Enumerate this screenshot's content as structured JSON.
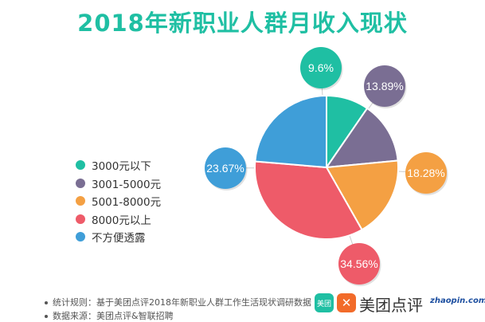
{
  "chart_data": {
    "type": "pie",
    "title": "2018年新职业人群月收入现状",
    "categories": [
      "3000元以下",
      "3001-5000元",
      "5001-8000元",
      "8000元以上",
      "不方便透露"
    ],
    "values": [
      9.6,
      13.89,
      18.28,
      34.56,
      23.67
    ],
    "labels": [
      "9.6%",
      "13.89%",
      "18.28%",
      "34.56%",
      "23.67%"
    ],
    "colors": [
      "#1fbfa3",
      "#7a6e93",
      "#f4a043",
      "#ee5b69",
      "#3f9ed8"
    ],
    "legend_position": "left"
  },
  "footer": {
    "note1": "统计规则：基于美团点评2018年新职业人群工作生活现状调研数据",
    "note2": "数据来源：美团点评&智联招聘"
  },
  "logos": {
    "meituan": "美团",
    "dianping": "美团点评",
    "zhaopin": "zhaopin.com"
  }
}
